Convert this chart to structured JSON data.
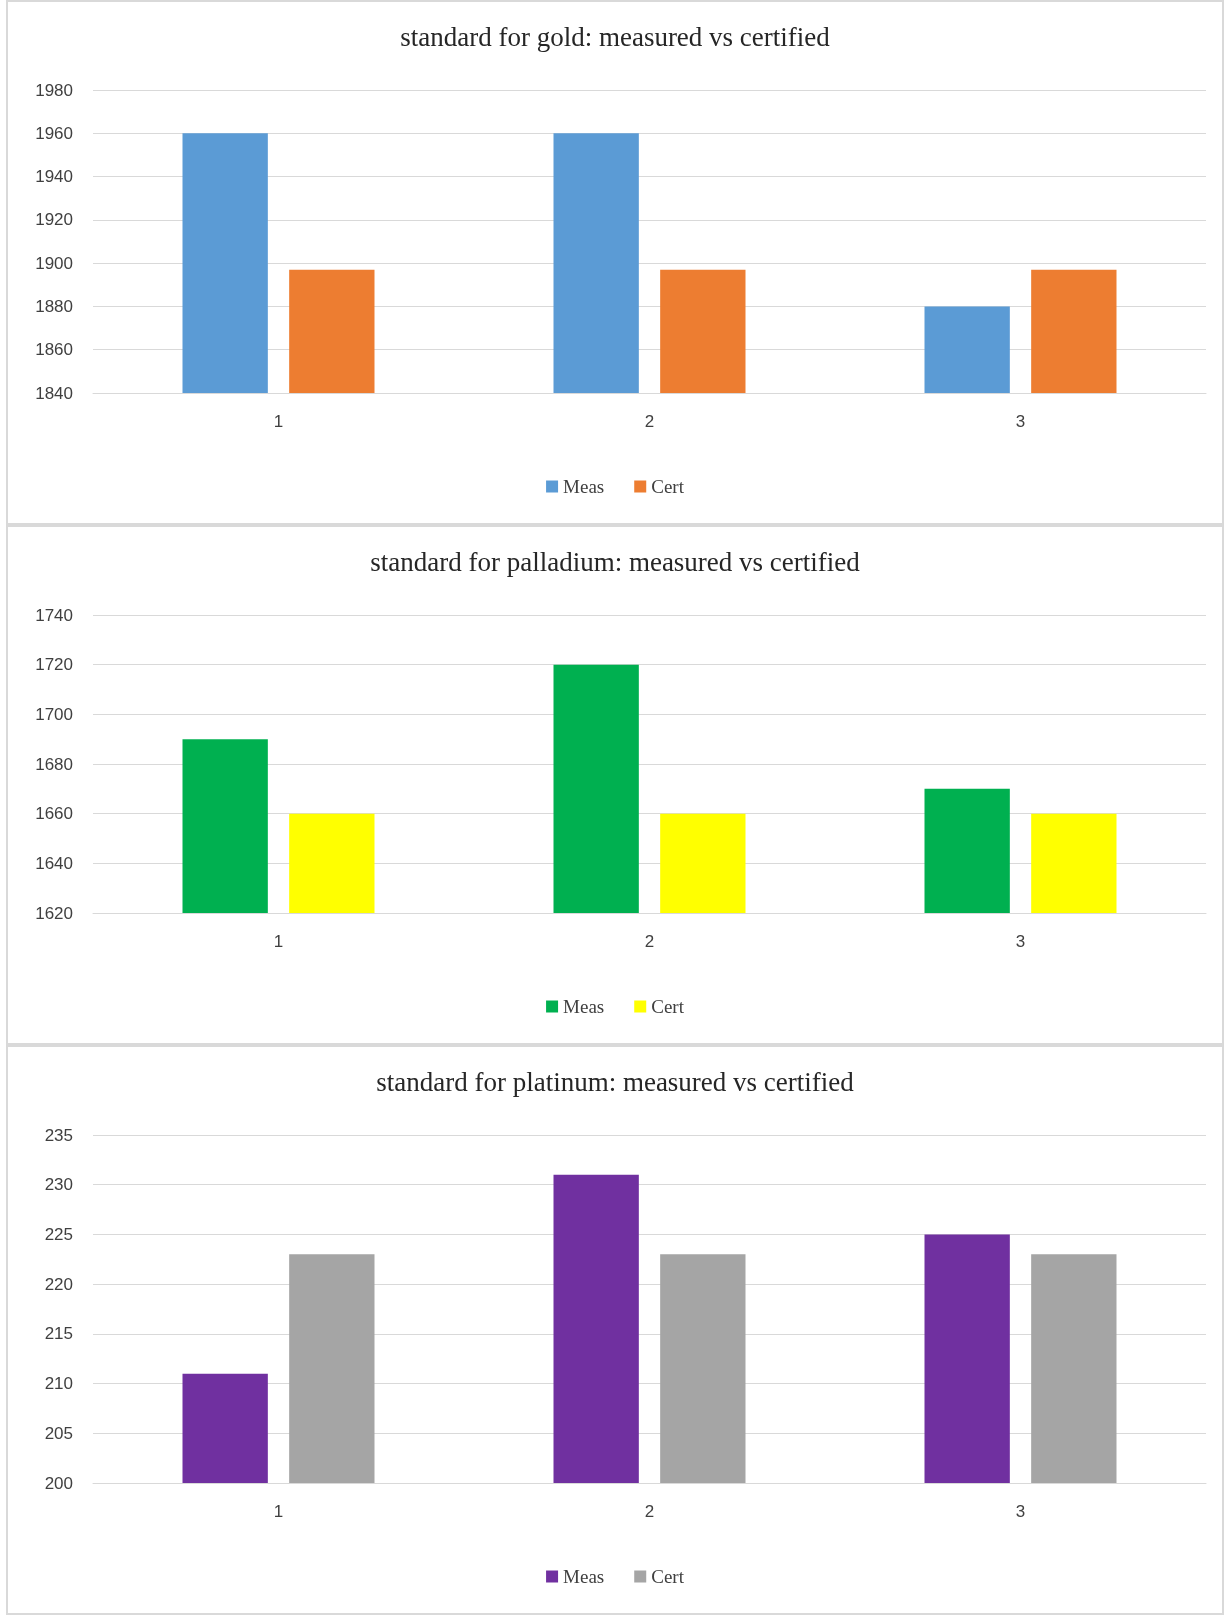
{
  "chart_data": [
    {
      "type": "bar",
      "title": "standard for gold: measured vs certified",
      "categories": [
        "1",
        "2",
        "3"
      ],
      "series": [
        {
          "name": "Meas",
          "color": "#5b9bd5",
          "values": [
            1960,
            1960,
            1880
          ]
        },
        {
          "name": "Cert",
          "color": "#ed7d31",
          "values": [
            1897,
            1897,
            1897
          ]
        }
      ],
      "ylim": [
        1840,
        1980
      ],
      "yticks": [
        1840,
        1860,
        1880,
        1900,
        1920,
        1940,
        1960,
        1980
      ],
      "grid": "y",
      "legend": "bottom"
    },
    {
      "type": "bar",
      "title": "standard for palladium: measured vs certified",
      "categories": [
        "1",
        "2",
        "3"
      ],
      "series": [
        {
          "name": "Meas",
          "color": "#00b050",
          "values": [
            1690,
            1720,
            1670
          ]
        },
        {
          "name": "Cert",
          "color": "#ffff00",
          "values": [
            1660,
            1660,
            1660
          ]
        }
      ],
      "ylim": [
        1620,
        1740
      ],
      "yticks": [
        1620,
        1640,
        1660,
        1680,
        1700,
        1720,
        1740
      ],
      "grid": "y",
      "legend": "bottom"
    },
    {
      "type": "bar",
      "title": "standard for platinum: measured vs certified",
      "categories": [
        "1",
        "2",
        "3"
      ],
      "series": [
        {
          "name": "Meas",
          "color": "#7030a0",
          "values": [
            211,
            231,
            225
          ]
        },
        {
          "name": "Cert",
          "color": "#a5a5a5",
          "values": [
            223,
            223,
            223
          ]
        }
      ],
      "ylim": [
        200,
        235
      ],
      "yticks": [
        200,
        205,
        210,
        215,
        220,
        225,
        230,
        235
      ],
      "grid": "y",
      "legend": "bottom"
    }
  ]
}
